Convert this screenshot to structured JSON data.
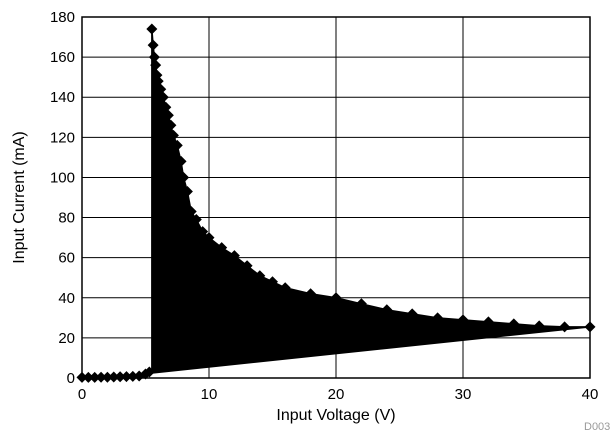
{
  "chart_data": {
    "type": "scatter",
    "title": "",
    "xlabel": "Input Voltage (V)",
    "ylabel": "Input Current (mA)",
    "xlim": [
      0,
      40
    ],
    "ylim": [
      0,
      180
    ],
    "x_ticks": [
      "0",
      "10",
      "20",
      "30",
      "40"
    ],
    "y_ticks": [
      "0",
      "20",
      "40",
      "60",
      "80",
      "100",
      "120",
      "140",
      "160",
      "180"
    ],
    "grid": true,
    "legend": "none",
    "figure_id": "D003",
    "series": [
      {
        "marker": "diamond",
        "color": "#000000",
        "points": [
          [
            0.0,
            0.3
          ],
          [
            0.5,
            0.3
          ],
          [
            1.0,
            0.3
          ],
          [
            1.5,
            0.4
          ],
          [
            2.0,
            0.4
          ],
          [
            2.5,
            0.5
          ],
          [
            3.0,
            0.6
          ],
          [
            3.5,
            0.7
          ],
          [
            4.0,
            0.8
          ],
          [
            4.5,
            1.0
          ],
          [
            5.0,
            2.0
          ],
          [
            5.3,
            3.0
          ],
          [
            5.5,
            174
          ],
          [
            5.6,
            166
          ],
          [
            5.7,
            160
          ],
          [
            5.8,
            156
          ],
          [
            5.9,
            151
          ],
          [
            6.0,
            148
          ],
          [
            6.2,
            144
          ],
          [
            6.4,
            140
          ],
          [
            6.6,
            135
          ],
          [
            6.8,
            131
          ],
          [
            7.0,
            126
          ],
          [
            7.2,
            121
          ],
          [
            7.5,
            116
          ],
          [
            7.8,
            108
          ],
          [
            8.0,
            100
          ],
          [
            8.3,
            93
          ],
          [
            8.6,
            83
          ],
          [
            9.0,
            79
          ],
          [
            9.5,
            73
          ],
          [
            10,
            70
          ],
          [
            11,
            65
          ],
          [
            12,
            61
          ],
          [
            13,
            56
          ],
          [
            14,
            51
          ],
          [
            15,
            48
          ],
          [
            16,
            45
          ],
          [
            18,
            42
          ],
          [
            20,
            40
          ],
          [
            22,
            37
          ],
          [
            24,
            34
          ],
          [
            26,
            32
          ],
          [
            28,
            30
          ],
          [
            30,
            29
          ],
          [
            32,
            28
          ],
          [
            34,
            27
          ],
          [
            36,
            26
          ],
          [
            38,
            25.5
          ],
          [
            40,
            25.5
          ]
        ]
      }
    ]
  }
}
